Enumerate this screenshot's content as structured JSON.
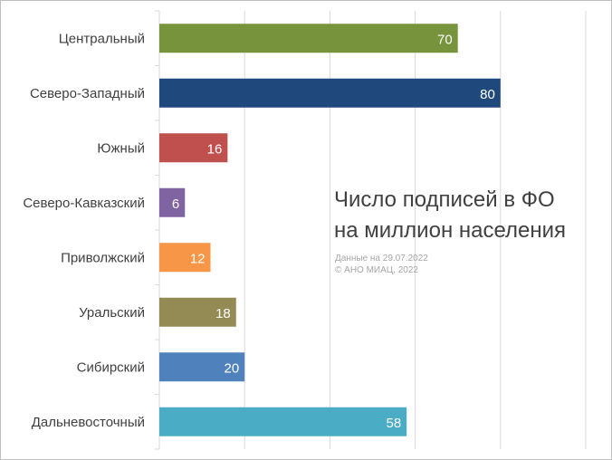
{
  "chart_data": {
    "type": "bar",
    "orientation": "horizontal",
    "title": [
      "Число подписей в ФО",
      "на миллион населения"
    ],
    "notes": [
      "Данные на 29.07.2022",
      "© АНО МИАЦ, 2022"
    ],
    "categories": [
      "Центральный",
      "Северо-Западный",
      "Южный",
      "Северо-Кавказский",
      "Приволжский",
      "Уральский",
      "Сибирский",
      "Дальневосточный"
    ],
    "values": [
      70,
      80,
      16,
      6,
      12,
      18,
      20,
      58
    ],
    "colors": [
      "#77933c",
      "#1f497d",
      "#c0504d",
      "#8064a2",
      "#f79646",
      "#948a54",
      "#4f81bd",
      "#4bacc6"
    ],
    "xlim": [
      0,
      100
    ],
    "grid": true,
    "data_labels": true,
    "legend": "none"
  }
}
